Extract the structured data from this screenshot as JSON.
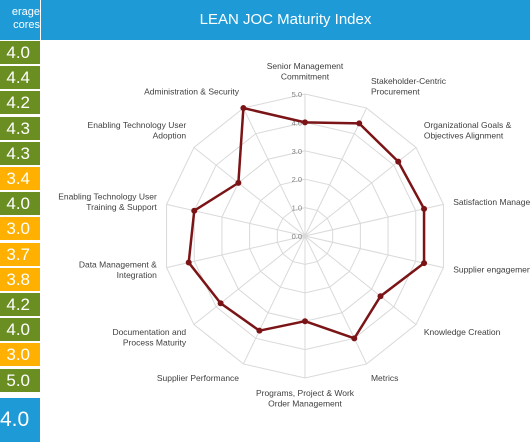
{
  "left_panel": {
    "header_line1": "erage",
    "header_line2": "cores",
    "scores": [
      {
        "text": "4.0",
        "color": "#6b8e23"
      },
      {
        "text": "4.4",
        "color": "#6b8e23"
      },
      {
        "text": "4.2",
        "color": "#6b8e23"
      },
      {
        "text": "4.3",
        "color": "#6b8e23"
      },
      {
        "text": "4.3",
        "color": "#6b8e23"
      },
      {
        "text": "3.4",
        "color": "#ffb000"
      },
      {
        "text": "4.0",
        "color": "#6b8e23"
      },
      {
        "text": "3.0",
        "color": "#ffb000"
      },
      {
        "text": "3.7",
        "color": "#ffb000"
      },
      {
        "text": "3.8",
        "color": "#ffb000"
      },
      {
        "text": "4.2",
        "color": "#6b8e23"
      },
      {
        "text": "4.0",
        "color": "#6b8e23"
      },
      {
        "text": "3.0",
        "color": "#ffb000"
      },
      {
        "text": "5.0",
        "color": "#6b8e23"
      }
    ],
    "average": "4.0"
  },
  "header": {
    "title": "LEAN JOC Maturity Index"
  },
  "colors": {
    "header_blue": "#1e9ad6",
    "series_line": "#7b1416",
    "grid": "#d9d9d9"
  },
  "chart_data": {
    "type": "radar",
    "title": "LEAN JOC Maturity Index",
    "categories": [
      [
        "Senior Management",
        "Commitment"
      ],
      [
        "Stakeholder-Centric",
        "Procurement"
      ],
      [
        "Organizational Goals &",
        "Objectives Alignment"
      ],
      [
        "Satisfaction Managem"
      ],
      [
        "Supplier engagement"
      ],
      [
        "Knowledge Creation"
      ],
      [
        "Metrics"
      ],
      [
        "Programs, Project & Work",
        "Order Management"
      ],
      [
        "Supplier Performance"
      ],
      [
        "Documentation and",
        "Process Maturity"
      ],
      [
        "Data Management &",
        "Integration"
      ],
      [
        "Enabling Technology User",
        "Training & Support"
      ],
      [
        "Enabling Technology User",
        "Adoption"
      ],
      [
        "Administration & Security"
      ]
    ],
    "values": [
      4.0,
      4.4,
      4.2,
      4.3,
      4.3,
      3.4,
      4.0,
      3.0,
      3.7,
      3.8,
      4.2,
      4.0,
      3.0,
      5.0
    ],
    "rlim": [
      0,
      5
    ],
    "ticks": [
      "0.0",
      "1.0",
      "2.0",
      "3.0",
      "4.0",
      "5.0"
    ],
    "grid": true
  }
}
